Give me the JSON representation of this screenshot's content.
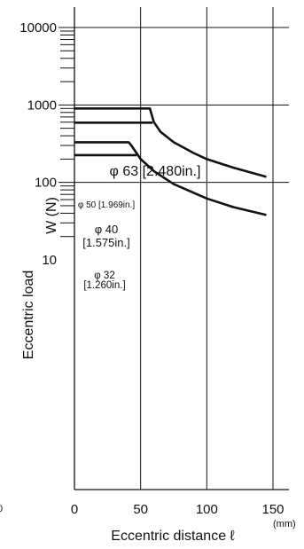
{
  "chart_data": {
    "type": "line",
    "xlabel": "Eccentric distance ℓ",
    "x_unit": "(mm)",
    "ylabel": "Eccentric load",
    "ylabel_unit": "W (N)",
    "x_ticks": [
      "0",
      "50",
      "100",
      "150"
    ],
    "y_ticks": [
      "10",
      "100",
      "1000",
      "10000"
    ],
    "xlim": [
      0,
      150
    ],
    "ylim": [
      10,
      10000
    ],
    "y_scale": "log",
    "grid": true,
    "series": [
      {
        "name": "φ 63 [2.480in.]",
        "label_lines": [
          "φ 63 [2.480in.]"
        ],
        "points": [
          [
            0,
            900
          ],
          [
            55,
            900
          ],
          [
            57,
            900
          ],
          [
            60,
            600
          ],
          [
            65,
            450
          ],
          [
            75,
            330
          ],
          [
            90,
            240
          ],
          [
            100,
            200
          ],
          [
            120,
            155
          ],
          [
            145,
            118
          ]
        ]
      },
      {
        "name": "φ 50 [1.969in.]",
        "label_lines": [
          "φ 50 [1.969in.]"
        ],
        "points": [
          [
            0,
            590
          ],
          [
            59,
            590
          ]
        ]
      },
      {
        "name": "φ 40 [1.575in.]",
        "label_lines": [
          "φ 40",
          "[1.575in.]"
        ],
        "points": [
          [
            0,
            330
          ],
          [
            41,
            330
          ],
          [
            43,
            300
          ],
          [
            50,
            200
          ],
          [
            60,
            140
          ],
          [
            75,
            95
          ],
          [
            100,
            62
          ],
          [
            120,
            48
          ],
          [
            145,
            38
          ]
        ]
      },
      {
        "name": "φ 32 [1.260in.]",
        "label_lines": [
          "φ 32",
          "[1.260in.]"
        ],
        "points": [
          [
            0,
            225
          ],
          [
            47,
            225
          ]
        ]
      }
    ],
    "left_edge_fragments": [
      "0",
      ")"
    ]
  }
}
